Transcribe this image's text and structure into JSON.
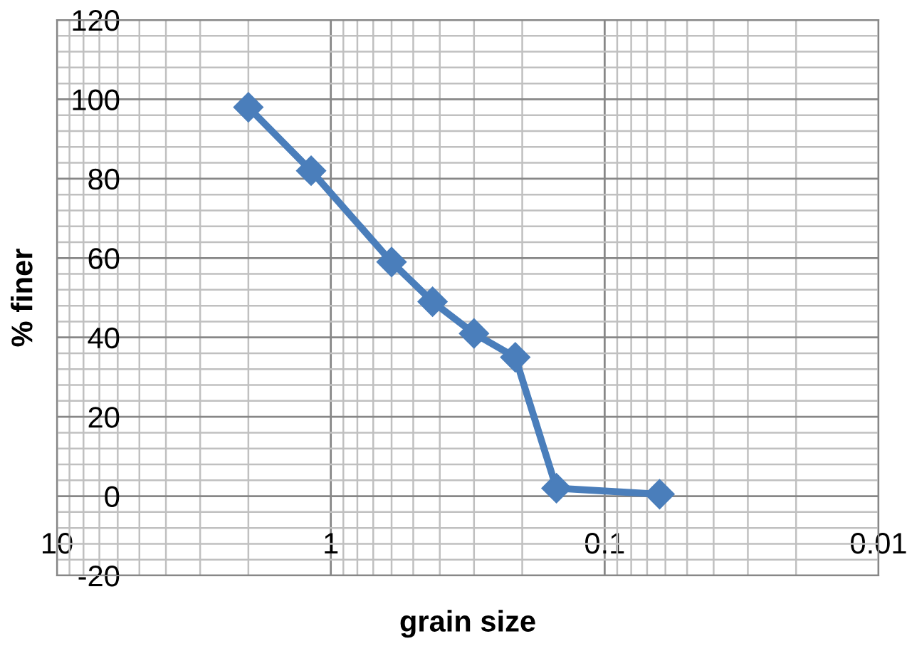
{
  "chart_data": {
    "type": "line",
    "xlabel": "grain size",
    "ylabel": "% finer",
    "x": [
      2,
      1.18,
      0.6,
      0.425,
      0.3,
      0.212,
      0.15,
      0.063
    ],
    "series": [
      {
        "color": "#4a7ebb",
        "values": [
          98,
          82,
          59,
          49,
          41,
          35,
          2,
          0.5
        ]
      }
    ],
    "log": "x",
    "xlim": [
      10,
      0.01
    ],
    "xticks": [
      10,
      1,
      0.1,
      0.01
    ],
    "ylim": [
      -20,
      120
    ],
    "yticks": [
      -20,
      0,
      20,
      40,
      60,
      80,
      100,
      120
    ],
    "grid": true,
    "marker": "diamond",
    "line_style": "solid",
    "legend": false
  }
}
